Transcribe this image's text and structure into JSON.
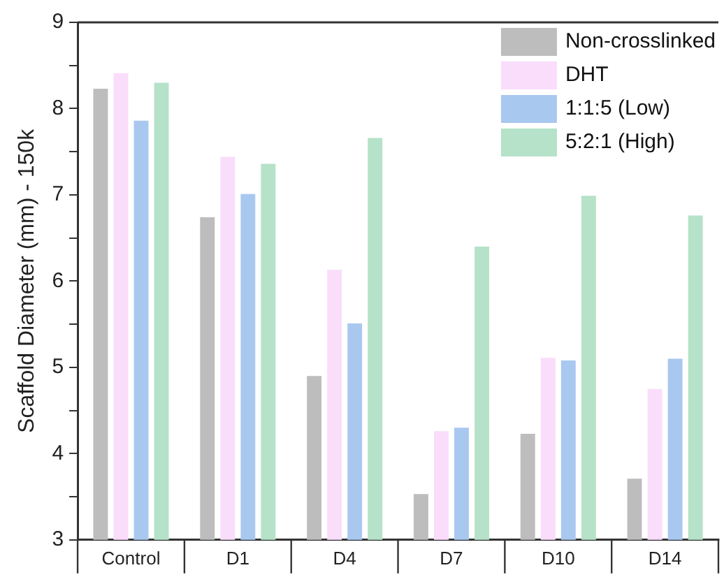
{
  "chart_data": {
    "type": "bar",
    "ylabel": "Scaffold Diameter (mm) - 150k",
    "categories": [
      "Control",
      "D1",
      "D4",
      "D7",
      "D10",
      "D14"
    ],
    "series": [
      {
        "name": "Non-crosslinked",
        "color": "#bdbdbd",
        "values": [
          8.23,
          6.74,
          4.9,
          3.53,
          4.23,
          3.71
        ]
      },
      {
        "name": "DHT",
        "color": "#f9ddfb",
        "values": [
          8.41,
          7.44,
          6.13,
          4.26,
          5.11,
          4.75
        ]
      },
      {
        "name": "1:1:5 (Low)",
        "color": "#a9c8f0",
        "values": [
          7.86,
          7.01,
          5.51,
          4.3,
          5.08,
          5.1
        ]
      },
      {
        "name": "5:2:1 (High)",
        "color": "#b5e2c8",
        "values": [
          8.3,
          7.36,
          7.66,
          6.4,
          6.99,
          6.76
        ]
      }
    ],
    "ylim": [
      3,
      9
    ],
    "yticks": [
      3,
      {
        "value": 3.5,
        "label": null
      },
      4,
      {
        "value": 4.5,
        "label": null
      },
      5,
      {
        "value": 5.5,
        "label": null
      },
      6,
      {
        "value": 6.5,
        "label": null
      },
      7,
      {
        "value": 7.5,
        "label": null
      },
      8,
      {
        "value": 8.5,
        "label": null
      },
      9
    ],
    "grid": false,
    "legend": "top right"
  }
}
